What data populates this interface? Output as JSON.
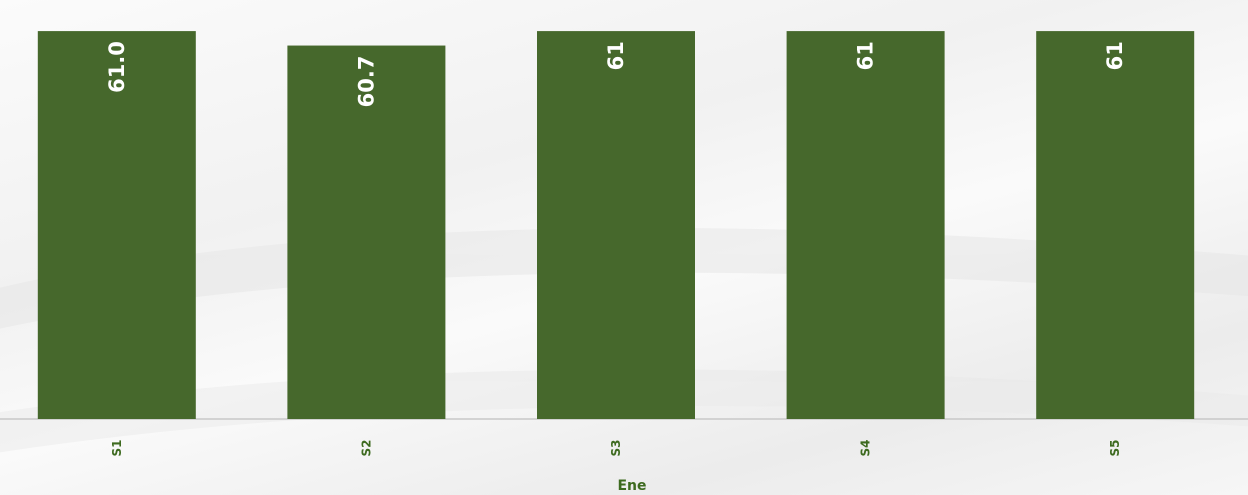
{
  "chart_data": {
    "type": "bar",
    "categories": [
      "S1",
      "S2",
      "S3",
      "S4",
      "S5"
    ],
    "values": [
      61.0,
      60.7,
      61,
      61,
      61
    ],
    "data_labels": [
      "61.0",
      "60.7",
      "61",
      "61",
      "61"
    ],
    "xlabel": "Ene",
    "ylabel": "",
    "ylim": [
      52.95,
      61.5
    ],
    "grid": false,
    "legend": "none",
    "colors": {
      "bar": "#46682c",
      "axis_text": "#3d6a1f",
      "baseline": "#c8c8c8",
      "data_label": "#ffffff"
    }
  }
}
